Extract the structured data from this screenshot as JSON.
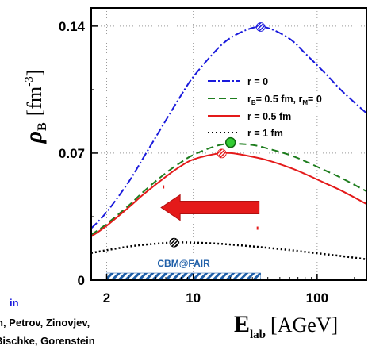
{
  "chart_data": {
    "type": "line",
    "x_scale": "log",
    "xlim": [
      1.5,
      250
    ],
    "ylim": [
      0,
      0.15
    ],
    "grid": true,
    "y_axis_title": "ρ",
    "y_axis_title_sub": "B",
    "y_axis_unit": "[fm",
    "y_axis_unit_sup": "-3",
    "y_axis_unit_close": "]",
    "x_axis_title": "E",
    "x_axis_title_sub": "lab",
    "x_axis_unit": "[AGeV]",
    "y_ticks": [
      {
        "value": 0,
        "label": "0"
      },
      {
        "value": 0.07,
        "label": "0.07"
      },
      {
        "value": 0.14,
        "label": "0.14"
      }
    ],
    "x_ticks": [
      {
        "value": 2,
        "label": "2"
      },
      {
        "value": 10,
        "label": "10"
      },
      {
        "value": 100,
        "label": "100"
      }
    ],
    "series": [
      {
        "name": "r = 0",
        "color": "#1a1adc",
        "style": "dashdot",
        "x": [
          1.5,
          2,
          3,
          4,
          6,
          8,
          10,
          15,
          20,
          30,
          40,
          60,
          80,
          120,
          160,
          250
        ],
        "y": [
          0.0285,
          0.0375,
          0.054,
          0.068,
          0.088,
          0.102,
          0.112,
          0.126,
          0.1335,
          0.139,
          0.139,
          0.133,
          0.125,
          0.113,
          0.104,
          0.092
        ]
      },
      {
        "name": "r_B= 0.5 fm, r_M= 0",
        "color": "#1e7d1e",
        "style": "dashed",
        "x": [
          1.5,
          2,
          3,
          4,
          6,
          8,
          10,
          15,
          20,
          30,
          40,
          60,
          80,
          120,
          160,
          250
        ],
        "y": [
          0.025,
          0.031,
          0.041,
          0.049,
          0.059,
          0.065,
          0.069,
          0.0738,
          0.0752,
          0.0745,
          0.0725,
          0.069,
          0.0655,
          0.06,
          0.056,
          0.049
        ]
      },
      {
        "name": "r = 0.5 fm",
        "color": "#e41a1a",
        "style": "solid",
        "x": [
          1.5,
          2,
          3,
          4,
          6,
          8,
          10,
          15,
          20,
          30,
          40,
          60,
          80,
          120,
          160,
          250
        ],
        "y": [
          0.024,
          0.03,
          0.04,
          0.0475,
          0.057,
          0.063,
          0.0665,
          0.0695,
          0.07,
          0.068,
          0.066,
          0.062,
          0.0585,
          0.053,
          0.049,
          0.042
        ]
      },
      {
        "name": "r = 1 fm",
        "color": "#000000",
        "style": "dotted",
        "x": [
          1.5,
          2,
          3,
          4,
          6,
          8,
          10,
          15,
          20,
          30,
          40,
          60,
          80,
          120,
          160,
          250
        ],
        "y": [
          0.015,
          0.0165,
          0.0185,
          0.0195,
          0.0205,
          0.0208,
          0.0207,
          0.0202,
          0.0196,
          0.0186,
          0.0178,
          0.0166,
          0.0156,
          0.0142,
          0.0132,
          0.0115
        ]
      }
    ],
    "markers": [
      {
        "type": "hatched",
        "series": "r = 0",
        "x": 35,
        "y": 0.1395
      },
      {
        "type": "hatched",
        "series": "r = 0.5 fm",
        "x": 17,
        "y": 0.0698
      },
      {
        "type": "hatched",
        "series": "r = 1 fm",
        "x": 7,
        "y": 0.0207
      },
      {
        "type": "filled",
        "series": "r_B= 0.5 fm, r_M= 0",
        "x": 20,
        "y": 0.0758
      }
    ],
    "annotations": [
      {
        "type": "arrow",
        "direction": "left",
        "x_from": 34,
        "x_to": 5.5,
        "y": 0.04,
        "color": "#e41a1a"
      },
      {
        "type": "range-bar",
        "label": "CBM@FAIR",
        "x_from": 2,
        "x_to": 35,
        "y": 0.003
      }
    ]
  },
  "legend": [
    {
      "text": "r = 0",
      "sub": "",
      "rest": ""
    },
    {
      "text": "r",
      "sub": "B",
      "rest": "= 0.5 fm, r",
      "sub2": "M",
      "rest2": "= 0"
    },
    {
      "text": "r = 0.5 fm",
      "sub": "",
      "rest": ""
    },
    {
      "text": "r = 1 fm",
      "sub": "",
      "rest": ""
    }
  ],
  "fragments": {
    "left_in": "in",
    "left_line1": "n, Petrov, Zinovjev,",
    "left_line2": "Bischke, Gorenstein"
  },
  "colors": {
    "blue": "#1a1adc",
    "green": "#1e7d1e",
    "red": "#e41a1a",
    "cbm_blue": "#1f5fa8"
  }
}
